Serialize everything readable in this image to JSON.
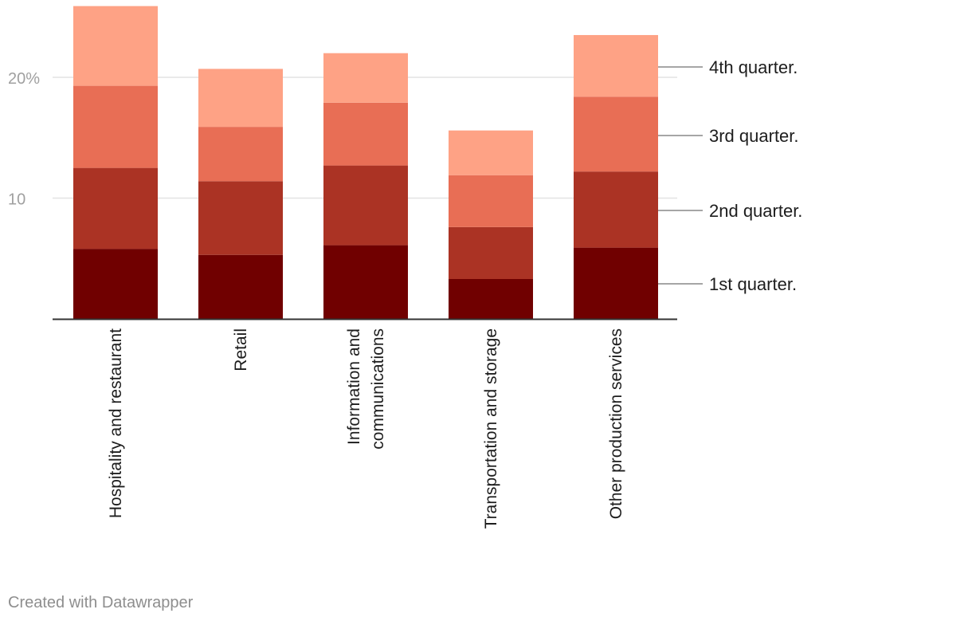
{
  "chart_data": {
    "type": "bar",
    "stacked": true,
    "categories": [
      "Hospitality and restaurant",
      "Retail",
      "Information and communications",
      "Transportation and storage",
      "Other production services"
    ],
    "category_lines": [
      [
        "Hospitality and restaurant"
      ],
      [
        "Retail"
      ],
      [
        "Information and",
        "communications"
      ],
      [
        "Transportation and storage"
      ],
      [
        "Other production services"
      ]
    ],
    "series": [
      {
        "name": "1st quarter.",
        "color": "#700000",
        "values": [
          5.8,
          5.3,
          6.1,
          3.3,
          5.9
        ]
      },
      {
        "name": "2nd quarter.",
        "color": "#ab3324",
        "values": [
          6.7,
          6.1,
          6.6,
          4.3,
          6.3
        ]
      },
      {
        "name": "3rd quarter.",
        "color": "#e86e55",
        "values": [
          6.8,
          4.5,
          5.2,
          4.3,
          6.2
        ]
      },
      {
        "name": "4th quarter.",
        "color": "#fea285",
        "values": [
          6.6,
          4.8,
          4.1,
          3.7,
          5.1
        ]
      }
    ],
    "yticks": [
      {
        "value": 10,
        "label": "10"
      },
      {
        "value": 20,
        "label": "20%"
      }
    ],
    "ylim": [
      0,
      26
    ],
    "grid": true,
    "legend_placement": "right, aligned to last bar"
  },
  "credit": "Created with Datawrapper"
}
